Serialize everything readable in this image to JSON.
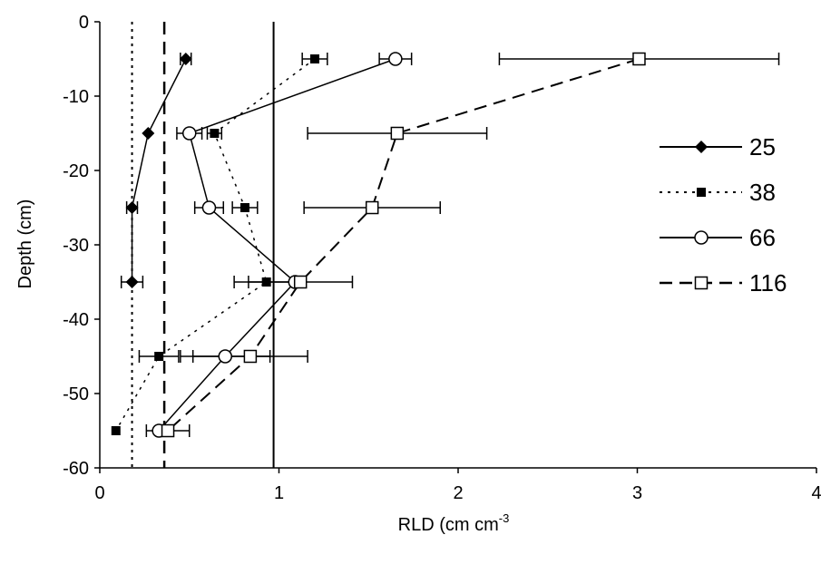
{
  "chart_data": {
    "type": "scatter",
    "title": "",
    "xlabel": "RLD (cm cm",
    "xlabel_sup": "-3",
    "ylabel": "Depth (cm)",
    "xlim": [
      0,
      4
    ],
    "ylim": [
      -60,
      0
    ],
    "x_ticks": [
      "0",
      "1",
      "2",
      "3",
      "4"
    ],
    "y_ticks": [
      "0",
      "-10",
      "-20",
      "-30",
      "-40",
      "-50",
      "-60"
    ],
    "grid": false,
    "legend_position": "right",
    "reference_lines": [
      {
        "x": 0.18,
        "style": "dotted"
      },
      {
        "x": 0.36,
        "style": "dashed"
      },
      {
        "x": 0.97,
        "style": "solid"
      }
    ],
    "series": [
      {
        "name": "25",
        "marker": "diamond",
        "line": "solid",
        "points": [
          {
            "x": 0.48,
            "y": -5,
            "err": 0.03
          },
          {
            "x": 0.27,
            "y": -15,
            "err": 0.0
          },
          {
            "x": 0.18,
            "y": -25,
            "err": 0.03
          },
          {
            "x": 0.18,
            "y": -35,
            "err": 0.06
          }
        ]
      },
      {
        "name": "38",
        "marker": "square-filled",
        "line": "dotted",
        "points": [
          {
            "x": 1.2,
            "y": -5,
            "err": 0.07
          },
          {
            "x": 0.64,
            "y": -15,
            "err": 0.04
          },
          {
            "x": 0.81,
            "y": -25,
            "err": 0.07
          },
          {
            "x": 0.93,
            "y": -35,
            "err": 0.18
          },
          {
            "x": 0.33,
            "y": -45,
            "err": 0.11
          },
          {
            "x": 0.09,
            "y": -55,
            "err": 0.0
          }
        ]
      },
      {
        "name": "66",
        "marker": "circle-open",
        "line": "solid",
        "points": [
          {
            "x": 1.65,
            "y": -5,
            "err": 0.09
          },
          {
            "x": 0.5,
            "y": -15,
            "err": 0.07
          },
          {
            "x": 0.61,
            "y": -25,
            "err": 0.08
          },
          {
            "x": 1.09,
            "y": -35,
            "err": 0.0
          },
          {
            "x": 0.7,
            "y": -45,
            "err": 0.25
          },
          {
            "x": 0.33,
            "y": -55,
            "err": 0.0
          }
        ]
      },
      {
        "name": "116",
        "marker": "square-open",
        "line": "dashed",
        "points": [
          {
            "x": 3.01,
            "y": -5,
            "err": 0.78
          },
          {
            "x": 1.66,
            "y": -15,
            "err": 0.5
          },
          {
            "x": 1.52,
            "y": -25,
            "err": 0.38
          },
          {
            "x": 1.12,
            "y": -35,
            "err": 0.29
          },
          {
            "x": 0.84,
            "y": -45,
            "err": 0.32
          },
          {
            "x": 0.38,
            "y": -55,
            "err": 0.12
          }
        ]
      }
    ]
  }
}
